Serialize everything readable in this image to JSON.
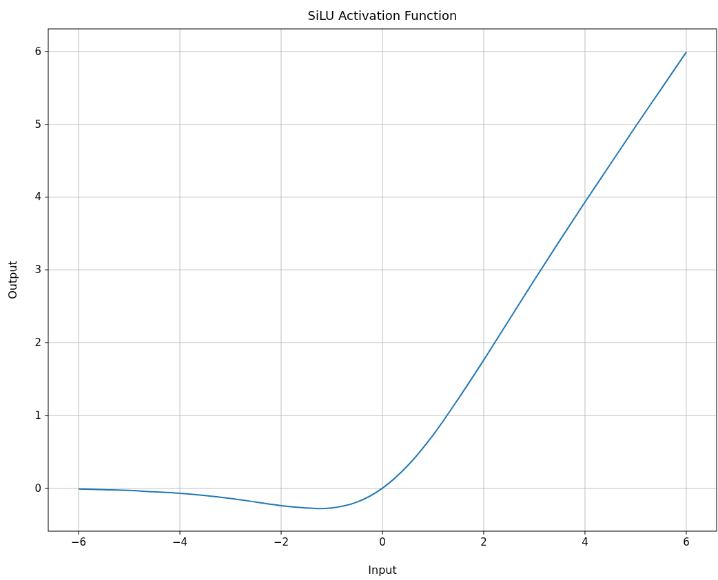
{
  "chart_data": {
    "type": "line",
    "title": "SiLU Activation Function",
    "xlabel": "Input",
    "ylabel": "Output",
    "x": [
      -6,
      -5.5,
      -5,
      -4.5,
      -4,
      -3.5,
      -3,
      -2.5,
      -2,
      -1.5,
      -1.25,
      -1,
      -0.5,
      0,
      0.5,
      1,
      1.5,
      2,
      2.5,
      3,
      3.5,
      4,
      4.5,
      5,
      5.5,
      6
    ],
    "series": [
      {
        "color": "#1f77b4",
        "values": [
          -0.01,
          -0.02,
          -0.03,
          -0.05,
          -0.07,
          -0.1,
          -0.14,
          -0.19,
          -0.24,
          -0.27,
          -0.28,
          -0.27,
          -0.19,
          0,
          0.31,
          0.73,
          1.23,
          1.76,
          2.31,
          2.86,
          3.4,
          3.93,
          4.45,
          4.97,
          5.48,
          5.99
        ]
      }
    ],
    "xlim": [
      -6.6,
      6.6
    ],
    "ylim": [
      -0.59,
      6.31
    ],
    "xticks": [
      {
        "value": -6,
        "label": "−6"
      },
      {
        "value": -4,
        "label": "−4"
      },
      {
        "value": -2,
        "label": "−2"
      },
      0,
      2,
      4,
      6
    ],
    "yticks": [
      0,
      1,
      2,
      3,
      4,
      5,
      6
    ],
    "grid": true
  }
}
